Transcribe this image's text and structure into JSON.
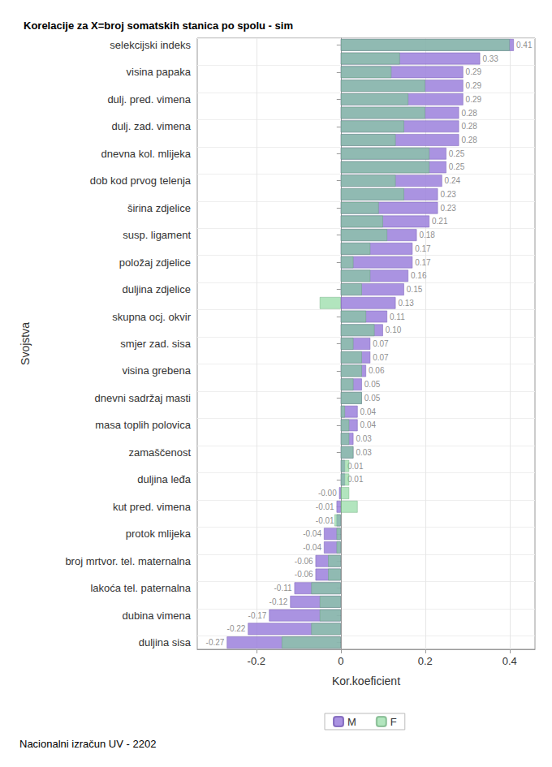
{
  "chart_data": {
    "type": "bar",
    "orientation": "horizontal",
    "title": "Korelacije za X=broj somatskih stanica po spolu - sim",
    "x_label": "Kor.koeficient",
    "y_label": "Svojstva",
    "footnote": "Nacionalni izračun UV - 2202",
    "categories": [
      "selekcijski indeks",
      null,
      "visina papaka",
      null,
      "dulj. pred. vimena",
      null,
      "dulj. zad. vimena",
      null,
      "dnevna kol. mlijeka",
      null,
      "dob kod prvog telenja",
      null,
      "širina zdjelice",
      null,
      "susp. ligament",
      null,
      "položaj zdjelice",
      null,
      "duljina zdjelice",
      null,
      "skupna ocj. okvir",
      null,
      "smjer zad. sisa",
      null,
      "visina grebena",
      null,
      "dnevni sadržaj masti",
      null,
      "masa toplih polovica",
      null,
      "zamaščenost",
      null,
      "duljina leđa",
      null,
      "kut pred. vimena",
      null,
      "protok mlijeka",
      null,
      "broj mrtvor. tel. maternalna",
      null,
      "lakoća tel. paternalna",
      null,
      "dubina vimena",
      null,
      "duljina sisa"
    ],
    "series": [
      {
        "name": "M",
        "color": "#9b80dc",
        "data_labels": true,
        "values": [
          0.41,
          0.33,
          0.29,
          0.29,
          0.29,
          0.28,
          0.28,
          0.28,
          0.25,
          0.25,
          0.24,
          0.23,
          0.23,
          0.21,
          0.18,
          0.17,
          0.17,
          0.16,
          0.15,
          0.13,
          0.11,
          0.1,
          0.07,
          0.07,
          0.06,
          0.05,
          0.05,
          0.04,
          0.04,
          0.03,
          0.03,
          0.01,
          0.01,
          -0.004,
          -0.01,
          -0.01,
          -0.04,
          -0.04,
          -0.06,
          -0.06,
          -0.11,
          -0.12,
          -0.17,
          -0.22,
          -0.27
        ],
        "value_labels": [
          "0.41",
          "0.33",
          "0.29",
          "0.29",
          "0.29",
          "0.28",
          "0.28",
          "0.28",
          "0.25",
          "0.25",
          "0.24",
          "0.23",
          "0.23",
          "0.21",
          "0.18",
          "0.17",
          "0.17",
          "0.16",
          "0.15",
          "0.13",
          "0.11",
          "0.10",
          "0.07",
          "0.07",
          "0.06",
          "0.05",
          "0.05",
          "0.04",
          "0.04",
          "0.03",
          "0.03",
          "0.01",
          "0.01",
          "-0.00",
          "-0.01",
          "-0.01",
          "-0.04",
          "-0.04",
          "-0.06",
          "-0.06",
          "-0.11",
          "-0.12",
          "-0.17",
          "-0.22",
          "-0.27"
        ]
      },
      {
        "name": "F",
        "color": "#7ed493",
        "data_labels": false,
        "values": [
          0.4,
          0.14,
          0.12,
          0.2,
          0.16,
          0.2,
          0.15,
          0.13,
          0.21,
          0.21,
          0.13,
          0.15,
          0.09,
          0.1,
          0.11,
          0.07,
          0.03,
          0.07,
          0.05,
          -0.05,
          0.06,
          0.08,
          0.03,
          0.05,
          0.05,
          0.03,
          0.05,
          0.01,
          0.02,
          0.02,
          0.03,
          0.02,
          0.02,
          0.02,
          0.04,
          -0.015,
          -0.01,
          -0.01,
          -0.03,
          -0.03,
          -0.07,
          -0.05,
          -0.05,
          -0.07,
          -0.14
        ]
      }
    ],
    "xlim": [
      -0.34,
      0.46
    ],
    "xticks": [
      -0.2,
      0,
      0.2,
      0.4
    ],
    "grid": true,
    "legend": "bottom"
  }
}
